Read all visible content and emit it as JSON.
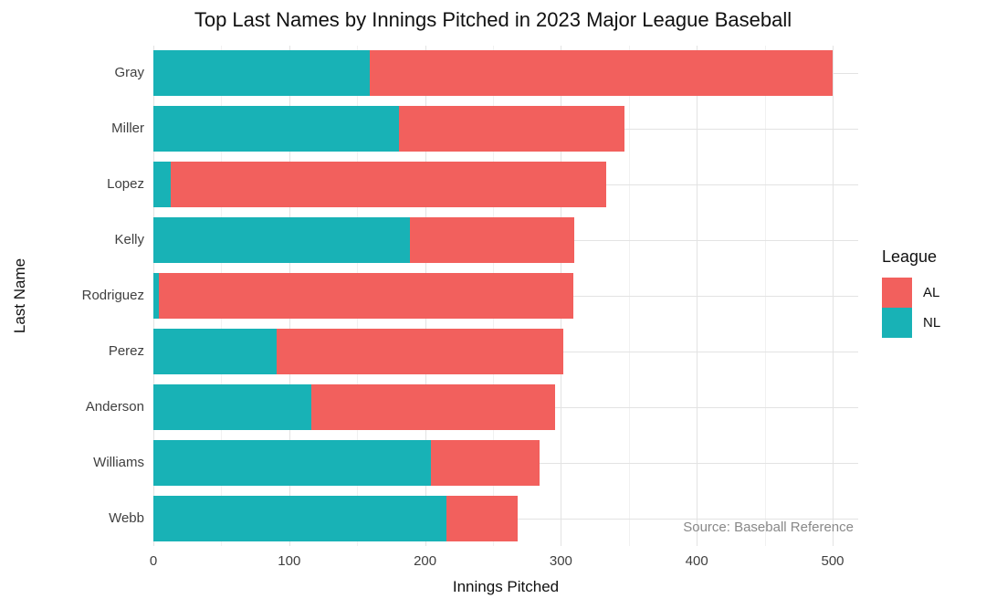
{
  "chart_data": {
    "type": "bar",
    "orientation": "horizontal",
    "stacked": true,
    "title": "Top Last Names by Innings Pitched in 2023 Major League Baseball",
    "xlabel": "Innings Pitched",
    "ylabel": "Last Name",
    "categories": [
      "Gray",
      "Miller",
      "Lopez",
      "Kelly",
      "Rodriguez",
      "Perez",
      "Anderson",
      "Williams",
      "Webb"
    ],
    "series": [
      {
        "name": "NL",
        "color": "#18b2b6",
        "values": [
          159,
          181,
          13,
          189,
          4,
          91,
          116,
          204,
          216
        ]
      },
      {
        "name": "AL",
        "color": "#f2605d",
        "values": [
          341,
          166,
          320,
          121,
          305,
          211,
          180,
          80,
          52
        ]
      }
    ],
    "totals": [
      500,
      347,
      333,
      310,
      309,
      302,
      296,
      284,
      268
    ],
    "xlim": [
      0,
      500
    ],
    "xticks": [
      0,
      100,
      200,
      300,
      400,
      500
    ],
    "xminorticks": [
      50,
      150,
      250,
      350,
      450
    ],
    "grid": true,
    "legend": {
      "title": "League",
      "position": "right",
      "entries": [
        {
          "label": "AL",
          "color": "#f2605d"
        },
        {
          "label": "NL",
          "color": "#18b2b6"
        }
      ]
    },
    "annotation": "Source: Baseball Reference"
  }
}
